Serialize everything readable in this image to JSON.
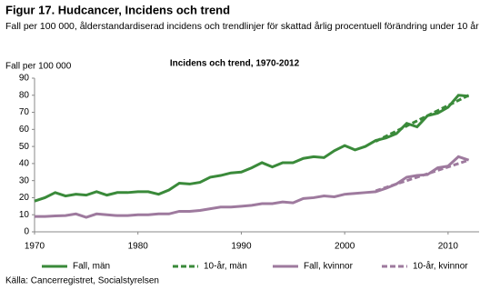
{
  "heading": "Figur 17. Hudcancer, Incidens och trend",
  "subheading": "Fall per 100 000, ålderstandardiserad  incidens och trendlinjer för skattad  årlig procentuell förändring under 10 år",
  "source": "Källa: Cancerregistret, Socialstyrelsen",
  "chart_data": {
    "type": "line",
    "title": "Incidens och trend, 1970-2012",
    "y_label": "Fall per 100 000",
    "x": [
      1970,
      1971,
      1972,
      1973,
      1974,
      1975,
      1976,
      1977,
      1978,
      1979,
      1980,
      1981,
      1982,
      1983,
      1984,
      1985,
      1986,
      1987,
      1988,
      1989,
      1990,
      1991,
      1992,
      1993,
      1994,
      1995,
      1996,
      1997,
      1998,
      1999,
      2000,
      2001,
      2002,
      2003,
      2004,
      2005,
      2006,
      2007,
      2008,
      2009,
      2010,
      2011,
      2012
    ],
    "xlim": [
      1970,
      2013
    ],
    "xticks": [
      1970,
      1980,
      1990,
      2000,
      2010
    ],
    "ylim": [
      0,
      90
    ],
    "yticks": [
      0,
      10,
      20,
      30,
      40,
      50,
      60,
      70,
      80,
      90
    ],
    "series": [
      {
        "name": "Fall, män",
        "color": "#3a8a3a",
        "dashed": false,
        "values": [
          18,
          20,
          23,
          21,
          22,
          21.5,
          23.5,
          21.5,
          23,
          23,
          23.5,
          23.5,
          22,
          24.5,
          28.5,
          28,
          29,
          32,
          33,
          34.5,
          35,
          37.5,
          40.5,
          38,
          40.5,
          40.5,
          43,
          44,
          43.5,
          47.5,
          50.5,
          48,
          50,
          53.5,
          55,
          57.5,
          63.5,
          61.5,
          68,
          69.5,
          73,
          80,
          79.5
        ]
      },
      {
        "name": "10-år, män",
        "color": "#3a8a3a",
        "dashed": true,
        "values": [
          null,
          null,
          null,
          null,
          null,
          null,
          null,
          null,
          null,
          null,
          null,
          null,
          null,
          null,
          null,
          null,
          null,
          null,
          null,
          null,
          null,
          null,
          null,
          null,
          null,
          null,
          null,
          null,
          null,
          null,
          null,
          null,
          null,
          53,
          56,
          59,
          62,
          65,
          68,
          71,
          74,
          77,
          80
        ]
      },
      {
        "name": "Fall, kvinnor",
        "color": "#9e7a9e",
        "dashed": false,
        "values": [
          9,
          9,
          9.3,
          9.5,
          10.5,
          8.5,
          10.5,
          10,
          9.5,
          9.5,
          10,
          10,
          10.5,
          10.5,
          12,
          12,
          12.5,
          13.5,
          14.5,
          14.5,
          15,
          15.5,
          16.5,
          16.5,
          17.5,
          17,
          19.5,
          20,
          21,
          20.5,
          22,
          22.5,
          23,
          23.5,
          25.5,
          28,
          32,
          33,
          33.5,
          37.5,
          38.5,
          44,
          42
        ]
      },
      {
        "name": "10-år, kvinnor",
        "color": "#9e7a9e",
        "dashed": true,
        "values": [
          null,
          null,
          null,
          null,
          null,
          null,
          null,
          null,
          null,
          null,
          null,
          null,
          null,
          null,
          null,
          null,
          null,
          null,
          null,
          null,
          null,
          null,
          null,
          null,
          null,
          null,
          null,
          null,
          null,
          null,
          null,
          null,
          null,
          24,
          26,
          28,
          30,
          32,
          34,
          36,
          38,
          40,
          42
        ]
      }
    ]
  }
}
